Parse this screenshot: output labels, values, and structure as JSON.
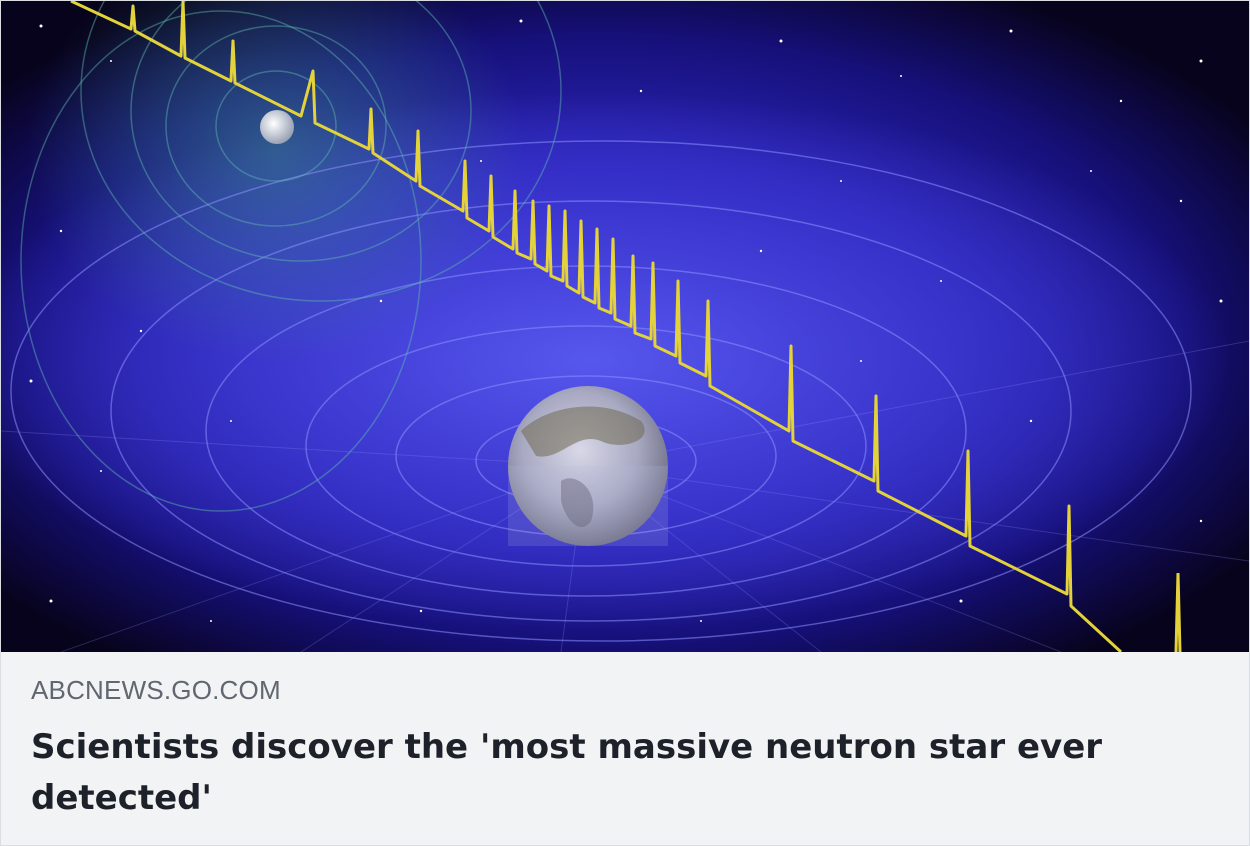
{
  "card": {
    "domain": "ABCNEWS.GO.COM",
    "headline": "Scientists discover the 'most massive neutron star ever detected'"
  },
  "image": {
    "subject": "neutron-star-pulsar-illustration",
    "colors": {
      "space": "#0a0524",
      "glow": "#3b35d8",
      "signal": "#e3d23a",
      "grid": "#7f86ff"
    }
  }
}
